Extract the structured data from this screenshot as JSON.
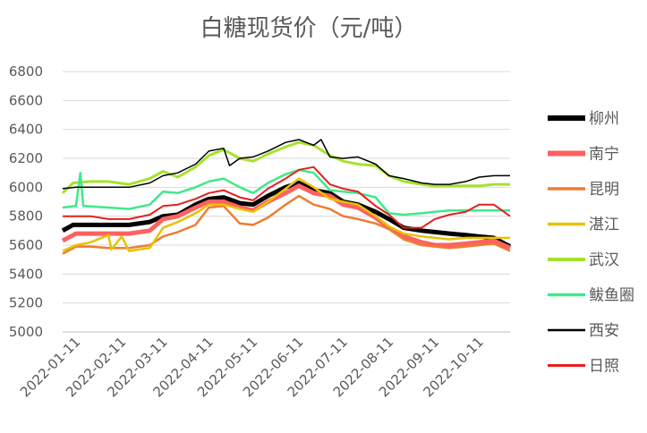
{
  "chart_data": {
    "type": "line",
    "title": "白糖现货价（元/吨）",
    "xlabel": "",
    "ylabel": "",
    "ylim": [
      5000,
      6800
    ],
    "yticks": [
      5000,
      5200,
      5400,
      5600,
      5800,
      6000,
      6200,
      6400,
      6600,
      6800
    ],
    "xlim": [
      "2022-01-01",
      "2022-10-31"
    ],
    "xticks": [
      "2022-01-11",
      "2022-02-11",
      "2022-03-11",
      "2022-04-11",
      "2022-05-11",
      "2022-06-11",
      "2022-07-11",
      "2022-08-11",
      "2022-09-11",
      "2022-10-11"
    ],
    "grid": true,
    "legend": "right",
    "series": [
      {
        "name": "柳州",
        "color": "#000000",
        "width": 5,
        "points": [
          [
            "2022-01-01",
            5700
          ],
          [
            "2022-01-08",
            5740
          ],
          [
            "2022-01-20",
            5740
          ],
          [
            "2022-02-01",
            5740
          ],
          [
            "2022-02-15",
            5740
          ],
          [
            "2022-03-01",
            5760
          ],
          [
            "2022-03-10",
            5800
          ],
          [
            "2022-03-20",
            5810
          ],
          [
            "2022-04-01",
            5880
          ],
          [
            "2022-04-10",
            5920
          ],
          [
            "2022-04-20",
            5930
          ],
          [
            "2022-05-01",
            5890
          ],
          [
            "2022-05-10",
            5880
          ],
          [
            "2022-05-20",
            5940
          ],
          [
            "2022-06-01",
            6000
          ],
          [
            "2022-06-10",
            6030
          ],
          [
            "2022-06-20",
            5980
          ],
          [
            "2022-07-01",
            5960
          ],
          [
            "2022-07-10",
            5900
          ],
          [
            "2022-07-20",
            5880
          ],
          [
            "2022-08-01",
            5830
          ],
          [
            "2022-08-10",
            5780
          ],
          [
            "2022-08-20",
            5720
          ],
          [
            "2022-09-01",
            5700
          ],
          [
            "2022-09-10",
            5690
          ],
          [
            "2022-09-20",
            5680
          ],
          [
            "2022-10-01",
            5670
          ],
          [
            "2022-10-10",
            5660
          ],
          [
            "2022-10-20",
            5650
          ],
          [
            "2022-10-31",
            5590
          ]
        ]
      },
      {
        "name": "南宁",
        "color": "#ff6161",
        "width": 5,
        "points": [
          [
            "2022-01-01",
            5630
          ],
          [
            "2022-01-10",
            5680
          ],
          [
            "2022-01-20",
            5680
          ],
          [
            "2022-02-01",
            5680
          ],
          [
            "2022-02-15",
            5680
          ],
          [
            "2022-03-01",
            5700
          ],
          [
            "2022-03-10",
            5780
          ],
          [
            "2022-03-20",
            5800
          ],
          [
            "2022-04-01",
            5860
          ],
          [
            "2022-04-10",
            5900
          ],
          [
            "2022-04-20",
            5900
          ],
          [
            "2022-05-01",
            5860
          ],
          [
            "2022-05-10",
            5840
          ],
          [
            "2022-05-20",
            5900
          ],
          [
            "2022-06-01",
            5960
          ],
          [
            "2022-06-10",
            6010
          ],
          [
            "2022-06-20",
            5960
          ],
          [
            "2022-07-01",
            5940
          ],
          [
            "2022-07-10",
            5880
          ],
          [
            "2022-07-20",
            5860
          ],
          [
            "2022-08-01",
            5790
          ],
          [
            "2022-08-10",
            5720
          ],
          [
            "2022-08-20",
            5660
          ],
          [
            "2022-09-01",
            5620
          ],
          [
            "2022-09-10",
            5600
          ],
          [
            "2022-09-20",
            5600
          ],
          [
            "2022-10-01",
            5610
          ],
          [
            "2022-10-10",
            5620
          ],
          [
            "2022-10-20",
            5630
          ],
          [
            "2022-10-31",
            5580
          ]
        ]
      },
      {
        "name": "昆明",
        "color": "#ed7d31",
        "width": 2.5,
        "points": [
          [
            "2022-01-01",
            5540
          ],
          [
            "2022-01-10",
            5590
          ],
          [
            "2022-01-20",
            5590
          ],
          [
            "2022-02-01",
            5580
          ],
          [
            "2022-02-15",
            5580
          ],
          [
            "2022-03-01",
            5600
          ],
          [
            "2022-03-10",
            5660
          ],
          [
            "2022-03-20",
            5690
          ],
          [
            "2022-04-01",
            5740
          ],
          [
            "2022-04-10",
            5860
          ],
          [
            "2022-04-20",
            5870
          ],
          [
            "2022-05-01",
            5750
          ],
          [
            "2022-05-10",
            5740
          ],
          [
            "2022-05-20",
            5790
          ],
          [
            "2022-06-01",
            5880
          ],
          [
            "2022-06-10",
            5940
          ],
          [
            "2022-06-20",
            5880
          ],
          [
            "2022-07-01",
            5850
          ],
          [
            "2022-07-10",
            5800
          ],
          [
            "2022-07-20",
            5780
          ],
          [
            "2022-08-01",
            5750
          ],
          [
            "2022-08-10",
            5710
          ],
          [
            "2022-08-20",
            5640
          ],
          [
            "2022-09-01",
            5600
          ],
          [
            "2022-09-10",
            5590
          ],
          [
            "2022-09-20",
            5580
          ],
          [
            "2022-10-01",
            5590
          ],
          [
            "2022-10-10",
            5600
          ],
          [
            "2022-10-20",
            5610
          ],
          [
            "2022-10-31",
            5560
          ]
        ]
      },
      {
        "name": "湛江",
        "color": "#e8c200",
        "width": 2.5,
        "points": [
          [
            "2022-01-01",
            5560
          ],
          [
            "2022-01-10",
            5600
          ],
          [
            "2022-01-20",
            5620
          ],
          [
            "2022-02-01",
            5670
          ],
          [
            "2022-02-03",
            5570
          ],
          [
            "2022-02-10",
            5660
          ],
          [
            "2022-02-15",
            5560
          ],
          [
            "2022-03-01",
            5580
          ],
          [
            "2022-03-10",
            5720
          ],
          [
            "2022-03-20",
            5760
          ],
          [
            "2022-04-01",
            5820
          ],
          [
            "2022-04-10",
            5880
          ],
          [
            "2022-04-20",
            5880
          ],
          [
            "2022-05-01",
            5850
          ],
          [
            "2022-05-10",
            5830
          ],
          [
            "2022-05-20",
            5900
          ],
          [
            "2022-06-01",
            5990
          ],
          [
            "2022-06-10",
            6060
          ],
          [
            "2022-06-20",
            6000
          ],
          [
            "2022-07-01",
            5920
          ],
          [
            "2022-07-10",
            5900
          ],
          [
            "2022-07-20",
            5880
          ],
          [
            "2022-08-01",
            5800
          ],
          [
            "2022-08-10",
            5730
          ],
          [
            "2022-08-20",
            5680
          ],
          [
            "2022-09-01",
            5660
          ],
          [
            "2022-09-10",
            5650
          ],
          [
            "2022-09-20",
            5640
          ],
          [
            "2022-10-01",
            5650
          ],
          [
            "2022-10-10",
            5650
          ],
          [
            "2022-10-20",
            5650
          ],
          [
            "2022-10-31",
            5650
          ]
        ]
      },
      {
        "name": "武汉",
        "color": "#a6e22e",
        "width": 3,
        "points": [
          [
            "2022-01-01",
            5960
          ],
          [
            "2022-01-08",
            6030
          ],
          [
            "2022-01-20",
            6040
          ],
          [
            "2022-02-01",
            6040
          ],
          [
            "2022-02-15",
            6020
          ],
          [
            "2022-03-01",
            6060
          ],
          [
            "2022-03-10",
            6110
          ],
          [
            "2022-03-20",
            6070
          ],
          [
            "2022-04-01",
            6140
          ],
          [
            "2022-04-10",
            6220
          ],
          [
            "2022-04-20",
            6260
          ],
          [
            "2022-05-01",
            6200
          ],
          [
            "2022-05-10",
            6180
          ],
          [
            "2022-05-20",
            6230
          ],
          [
            "2022-06-01",
            6280
          ],
          [
            "2022-06-10",
            6310
          ],
          [
            "2022-06-20",
            6290
          ],
          [
            "2022-07-01",
            6220
          ],
          [
            "2022-07-10",
            6180
          ],
          [
            "2022-07-20",
            6160
          ],
          [
            "2022-08-01",
            6150
          ],
          [
            "2022-08-10",
            6080
          ],
          [
            "2022-08-20",
            6040
          ],
          [
            "2022-09-01",
            6020
          ],
          [
            "2022-09-10",
            6010
          ],
          [
            "2022-09-20",
            6010
          ],
          [
            "2022-10-01",
            6010
          ],
          [
            "2022-10-10",
            6010
          ],
          [
            "2022-10-20",
            6020
          ],
          [
            "2022-10-31",
            6020
          ]
        ]
      },
      {
        "name": "鲅鱼圈",
        "color": "#40e88a",
        "width": 2.5,
        "points": [
          [
            "2022-01-01",
            5860
          ],
          [
            "2022-01-10",
            5870
          ],
          [
            "2022-01-13",
            6100
          ],
          [
            "2022-01-15",
            5870
          ],
          [
            "2022-02-01",
            5860
          ],
          [
            "2022-02-15",
            5850
          ],
          [
            "2022-03-01",
            5880
          ],
          [
            "2022-03-10",
            5970
          ],
          [
            "2022-03-20",
            5960
          ],
          [
            "2022-04-01",
            6000
          ],
          [
            "2022-04-10",
            6040
          ],
          [
            "2022-04-20",
            6060
          ],
          [
            "2022-05-01",
            6000
          ],
          [
            "2022-05-10",
            5960
          ],
          [
            "2022-05-20",
            6030
          ],
          [
            "2022-06-01",
            6090
          ],
          [
            "2022-06-10",
            6120
          ],
          [
            "2022-06-20",
            6100
          ],
          [
            "2022-07-01",
            5980
          ],
          [
            "2022-07-10",
            5970
          ],
          [
            "2022-07-20",
            5960
          ],
          [
            "2022-08-01",
            5930
          ],
          [
            "2022-08-10",
            5820
          ],
          [
            "2022-08-20",
            5810
          ],
          [
            "2022-09-01",
            5820
          ],
          [
            "2022-09-10",
            5830
          ],
          [
            "2022-09-20",
            5840
          ],
          [
            "2022-10-01",
            5840
          ],
          [
            "2022-10-10",
            5840
          ],
          [
            "2022-10-20",
            5840
          ],
          [
            "2022-10-31",
            5840
          ]
        ]
      },
      {
        "name": "西安",
        "color": "#000000",
        "width": 1.5,
        "points": [
          [
            "2022-01-01",
            5990
          ],
          [
            "2022-01-10",
            6000
          ],
          [
            "2022-01-20",
            6000
          ],
          [
            "2022-02-01",
            6000
          ],
          [
            "2022-02-15",
            6000
          ],
          [
            "2022-03-01",
            6030
          ],
          [
            "2022-03-10",
            6080
          ],
          [
            "2022-03-20",
            6100
          ],
          [
            "2022-04-01",
            6160
          ],
          [
            "2022-04-10",
            6250
          ],
          [
            "2022-04-20",
            6270
          ],
          [
            "2022-04-24",
            6150
          ],
          [
            "2022-05-01",
            6200
          ],
          [
            "2022-05-10",
            6210
          ],
          [
            "2022-05-20",
            6250
          ],
          [
            "2022-06-01",
            6310
          ],
          [
            "2022-06-10",
            6330
          ],
          [
            "2022-06-20",
            6290
          ],
          [
            "2022-06-25",
            6330
          ],
          [
            "2022-07-01",
            6210
          ],
          [
            "2022-07-10",
            6200
          ],
          [
            "2022-07-20",
            6210
          ],
          [
            "2022-08-01",
            6160
          ],
          [
            "2022-08-10",
            6080
          ],
          [
            "2022-08-20",
            6060
          ],
          [
            "2022-09-01",
            6030
          ],
          [
            "2022-09-10",
            6020
          ],
          [
            "2022-09-20",
            6020
          ],
          [
            "2022-10-01",
            6040
          ],
          [
            "2022-10-10",
            6070
          ],
          [
            "2022-10-20",
            6080
          ],
          [
            "2022-10-31",
            6080
          ]
        ]
      },
      {
        "name": "日照",
        "color": "#e51f1f",
        "width": 2,
        "points": [
          [
            "2022-01-01",
            5800
          ],
          [
            "2022-01-10",
            5800
          ],
          [
            "2022-01-20",
            5800
          ],
          [
            "2022-02-01",
            5780
          ],
          [
            "2022-02-15",
            5780
          ],
          [
            "2022-03-01",
            5810
          ],
          [
            "2022-03-10",
            5870
          ],
          [
            "2022-03-20",
            5880
          ],
          [
            "2022-04-01",
            5920
          ],
          [
            "2022-04-10",
            5960
          ],
          [
            "2022-04-20",
            5980
          ],
          [
            "2022-05-01",
            5930
          ],
          [
            "2022-05-10",
            5910
          ],
          [
            "2022-05-20",
            5990
          ],
          [
            "2022-06-01",
            6060
          ],
          [
            "2022-06-10",
            6120
          ],
          [
            "2022-06-20",
            6140
          ],
          [
            "2022-07-01",
            6020
          ],
          [
            "2022-07-10",
            5990
          ],
          [
            "2022-07-20",
            5970
          ],
          [
            "2022-08-01",
            5870
          ],
          [
            "2022-08-10",
            5810
          ],
          [
            "2022-08-20",
            5720
          ],
          [
            "2022-09-01",
            5720
          ],
          [
            "2022-09-10",
            5780
          ],
          [
            "2022-09-20",
            5810
          ],
          [
            "2022-10-01",
            5830
          ],
          [
            "2022-10-10",
            5880
          ],
          [
            "2022-10-20",
            5880
          ],
          [
            "2022-10-31",
            5800
          ]
        ]
      }
    ]
  }
}
